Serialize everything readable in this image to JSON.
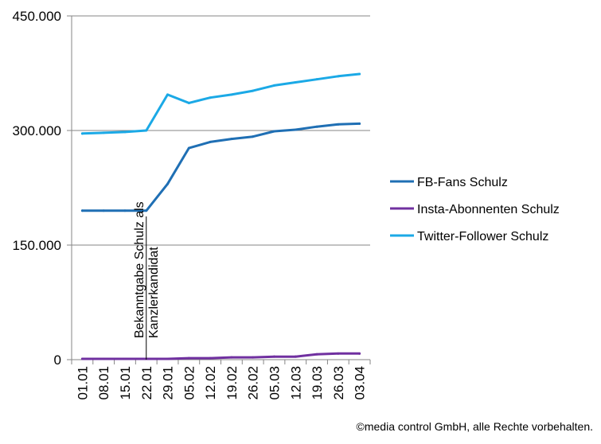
{
  "chart_data": {
    "type": "line",
    "categories": [
      "01.01",
      "08.01",
      "15.01",
      "22.01",
      "29.01",
      "05.02",
      "12.02",
      "19.02",
      "26.02",
      "05.03",
      "12.03",
      "19.03",
      "26.03",
      "03.04"
    ],
    "y_ticks": [
      "0",
      "150.000",
      "300.000",
      "450.000"
    ],
    "y_tick_values": [
      0,
      150000,
      300000,
      450000
    ],
    "ylim": [
      0,
      450000
    ],
    "grid": true,
    "legend_position": "right",
    "series": [
      {
        "name": "FB-Fans Schulz",
        "color": "#1F6FB4",
        "values": [
          195000,
          195000,
          195000,
          195000,
          230000,
          277000,
          285000,
          289000,
          292000,
          299000,
          301000,
          305000,
          308000,
          309000
        ]
      },
      {
        "name": "Insta-Abonnenten Schulz",
        "color": "#7030A0",
        "values": [
          1000,
          1000,
          1000,
          1000,
          1000,
          2000,
          2000,
          3000,
          3000,
          4000,
          4000,
          7000,
          8000,
          8000
        ]
      },
      {
        "name": "Twitter-Follower Schulz",
        "color": "#1BA9E6",
        "values": [
          296000,
          297000,
          298000,
          300000,
          347000,
          336000,
          343000,
          347000,
          352000,
          359000,
          363000,
          367000,
          371000,
          374000
        ]
      }
    ],
    "annotation": {
      "lines": [
        "Bekanntgabe Schulz als",
        "Kanzlerkandidat"
      ],
      "category_position": 3.5
    }
  },
  "copyright": "©media control GmbH, alle Rechte vorbehalten."
}
